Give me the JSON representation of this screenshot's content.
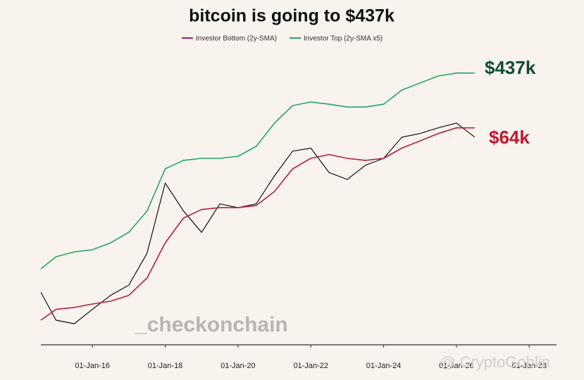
{
  "chart_data": {
    "type": "line",
    "title": "bitcoin is going to $437k",
    "log_y": true,
    "ylim": [
      100,
      1000000
    ],
    "xlim": [
      "2014-08",
      "2028-10"
    ],
    "xticks": [
      {
        "value": "2016-01",
        "label": "01-Jan-16"
      },
      {
        "value": "2018-01",
        "label": "01-Jan-18"
      },
      {
        "value": "2020-01",
        "label": "01-Jan-20"
      },
      {
        "value": "2022-01",
        "label": "01-Jan-22"
      },
      {
        "value": "2024-01",
        "label": "01-Jan-24"
      },
      {
        "value": "2026-01",
        "label": "01-Jan-26"
      },
      {
        "value": "2028-01",
        "label": "01-Jan-28"
      }
    ],
    "x": [
      "2014-08",
      "2015-01",
      "2015-07",
      "2016-01",
      "2016-07",
      "2017-01",
      "2017-07",
      "2018-01",
      "2018-07",
      "2019-01",
      "2019-07",
      "2020-01",
      "2020-07",
      "2021-01",
      "2021-07",
      "2022-01",
      "2022-07",
      "2023-01",
      "2023-07",
      "2024-01",
      "2024-07",
      "2025-01",
      "2025-07",
      "2026-01",
      "2026-07"
    ],
    "series": [
      {
        "color": "#111111",
        "values": [
          570,
          245,
          220,
          340,
          520,
          710,
          1860,
          15600,
          6700,
          3500,
          8300,
          7400,
          8300,
          19400,
          41000,
          45000,
          21500,
          17400,
          26700,
          33000,
          62500,
          70000,
          83000,
          96000,
          63000
        ]
      },
      {
        "name": "Investor Bottom (2y-SMA)",
        "color": "#b3203f",
        "values": [
          245,
          340,
          360,
          400,
          435,
          520,
          880,
          2550,
          5400,
          7000,
          7400,
          7400,
          7900,
          12100,
          24000,
          33000,
          37000,
          33000,
          31000,
          33000,
          45000,
          56000,
          70000,
          83000,
          83000
        ]
      },
      {
        "name": "Investor Top (2y-SMA x5)",
        "color": "#23a866",
        "values": [
          1160,
          1670,
          1940,
          2070,
          2550,
          3520,
          6670,
          24000,
          31000,
          33000,
          33000,
          35200,
          47400,
          95800,
          163000,
          182000,
          170000,
          156000,
          156000,
          170000,
          261000,
          323000,
          400000,
          437000,
          437000
        ]
      }
    ],
    "annotations": [
      {
        "text": "$437k",
        "color": "#0f4d2c"
      },
      {
        "text": "$64k",
        "color": "#c0182f"
      },
      {
        "text": "_checkonchain",
        "color": "#b9b5b0"
      },
      {
        "text": "@ CryptoGoblin",
        "color": "#d2cfcb"
      }
    ]
  }
}
